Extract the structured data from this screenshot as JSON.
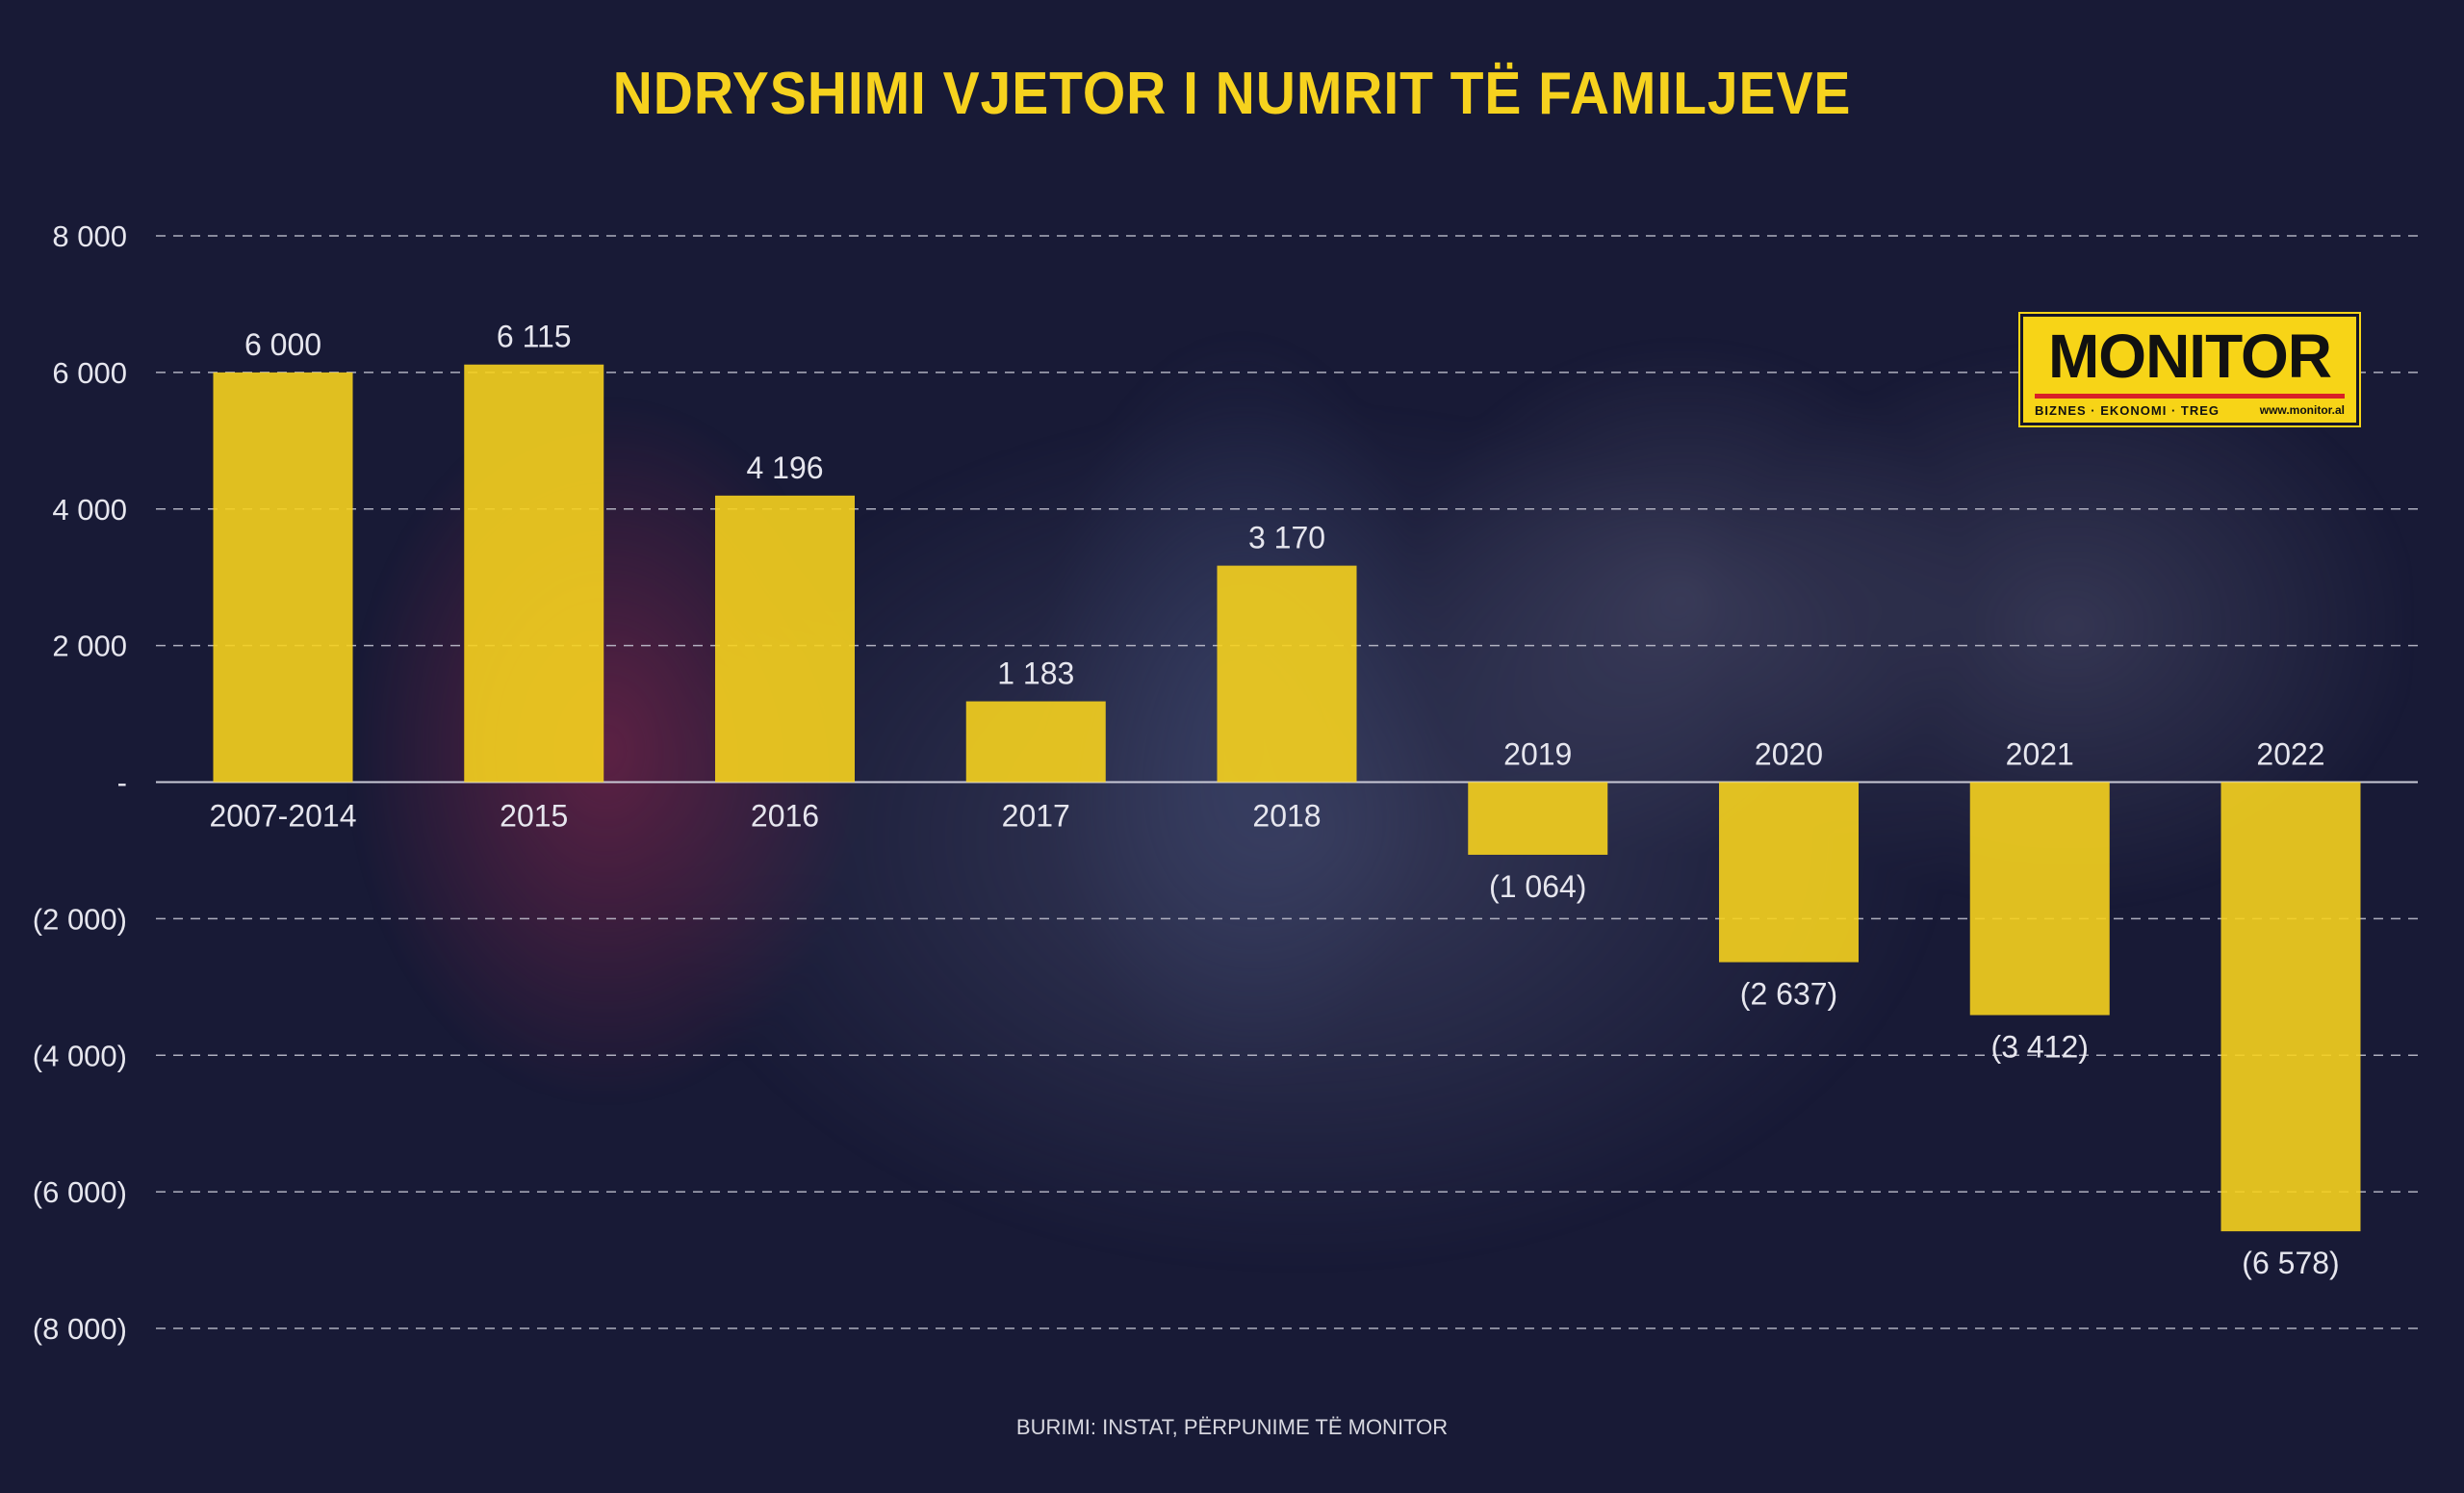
{
  "title": "NDRYSHIMI VJETOR I NUMRIT TË FAMILJEVE",
  "source": "BURIMI: INSTAT, PËRPUNIME TË MONITOR",
  "logo": {
    "name": "MONITOR",
    "tagline": "BIZNES · EKONOMI · TREG",
    "url": "www.monitor.al"
  },
  "colors": {
    "background": "#181a36",
    "bar": "#f6d21e",
    "title": "#f6d21e",
    "text": "#e6e6ee",
    "gridline": "#c9c9d6"
  },
  "chart_data": {
    "type": "bar",
    "title": "NDRYSHIMI VJETOR I NUMRIT TË FAMILJEVE",
    "xlabel": "",
    "ylabel": "",
    "categories": [
      "2007-2014",
      "2015",
      "2016",
      "2017",
      "2018",
      "2019",
      "2020",
      "2021",
      "2022"
    ],
    "values": [
      6000,
      6115,
      4196,
      1183,
      3170,
      -1064,
      -2637,
      -3412,
      -6578
    ],
    "value_labels": [
      "6 000",
      "6 115",
      "4 196",
      "1 183",
      "3 170",
      "(1 064)",
      "(2 637)",
      "(3 412)",
      "(6 578)"
    ],
    "ylim": [
      -8000,
      8000
    ],
    "yticks": [
      8000,
      6000,
      4000,
      2000,
      0,
      -2000,
      -4000,
      -6000,
      -8000
    ],
    "ytick_labels": [
      "8 000",
      "6 000",
      "4 000",
      "2 000",
      "-",
      "(2 000)",
      "(4 000)",
      "(6 000)",
      "(8 000)"
    ],
    "grid": true,
    "grid_style": "dashed",
    "legend": "none"
  }
}
